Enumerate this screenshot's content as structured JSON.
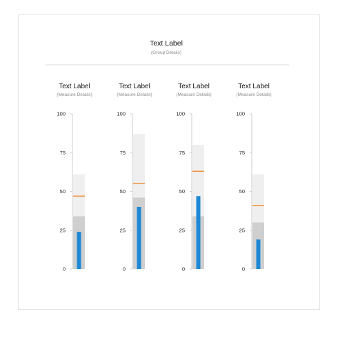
{
  "group": {
    "title": "Text Label",
    "subtitle": "(Group Details)"
  },
  "colors": {
    "range_light": "#efefef",
    "range_dark": "#cfcfcf",
    "measure": "#1e88d6",
    "target": "#f07f1e",
    "axis": "#cccccc",
    "divider": "#dddddd"
  },
  "chart_data": {
    "type": "bullet",
    "orientation": "vertical",
    "ylim": [
      0,
      100
    ],
    "yticks": [
      0,
      25,
      50,
      75,
      100
    ],
    "bullets": [
      {
        "title": "Text Label",
        "subtitle": "(Measure Details)",
        "ranges": [
          34,
          61
        ],
        "measure": 24,
        "target": 47
      },
      {
        "title": "Text Label",
        "subtitle": "(Measure Details)",
        "ranges": [
          46,
          87
        ],
        "measure": 40,
        "target": 55
      },
      {
        "title": "Text Label",
        "subtitle": "(Measure Details)",
        "ranges": [
          34,
          80
        ],
        "measure": 47,
        "target": 63
      },
      {
        "title": "Text Label",
        "subtitle": "(Measure Details)",
        "ranges": [
          30,
          61
        ],
        "measure": 19,
        "target": 41
      }
    ]
  }
}
